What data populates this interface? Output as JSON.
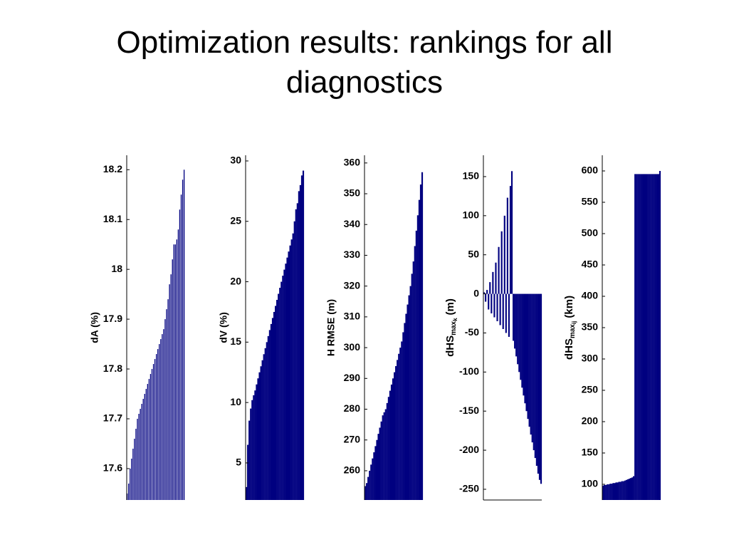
{
  "title": "Optimization results: rankings for all diagnostics",
  "chart_data": [
    {
      "type": "bar",
      "ylabel": "dA (%)",
      "color": "#000080",
      "values": [
        17.55,
        17.57,
        17.6,
        17.62,
        17.64,
        17.66,
        17.68,
        17.7,
        17.71,
        17.72,
        17.73,
        17.74,
        17.75,
        17.76,
        17.77,
        17.78,
        17.79,
        17.8,
        17.81,
        17.82,
        17.83,
        17.84,
        17.85,
        17.86,
        17.87,
        17.88,
        17.9,
        17.92,
        17.94,
        17.97,
        17.99,
        18.02,
        18.05,
        18.05,
        18.06,
        18.08,
        18.12,
        18.15,
        18.18,
        18.2
      ],
      "ylim": [
        17.537,
        18.229
      ],
      "yticks": [
        17.6,
        17.7,
        17.8,
        17.9,
        18,
        18.1,
        18.2
      ]
    },
    {
      "type": "bar",
      "ylabel": "dV (%)",
      "color": "#000080",
      "values": [
        3,
        6.5,
        8.5,
        9.5,
        10.2,
        10.6,
        11,
        11.5,
        12,
        12.5,
        13,
        13.5,
        14,
        14.5,
        15,
        15.5,
        16,
        16.5,
        17,
        17.5,
        18,
        18.5,
        19,
        19.5,
        20,
        20.5,
        21,
        21.5,
        22,
        22.5,
        23,
        23.5,
        24,
        25,
        26,
        26.5,
        27.5,
        28,
        28.8,
        29.2
      ],
      "ylim": [
        1.93,
        30.47
      ],
      "yticks": [
        5,
        10,
        15,
        20,
        25,
        30
      ]
    },
    {
      "type": "bar",
      "ylabel": "H RMSE (m)",
      "color": "#000080",
      "values": [
        255,
        256,
        258,
        260,
        262,
        264,
        266,
        268,
        270,
        272,
        274,
        276,
        278,
        279,
        280,
        282,
        284,
        286,
        288,
        290,
        292,
        294,
        296,
        298,
        300,
        302,
        305,
        308,
        311,
        314,
        317,
        320,
        324,
        328,
        333,
        338,
        343,
        348,
        353,
        357
      ],
      "ylim": [
        250.5,
        362.5
      ],
      "yticks": [
        260,
        270,
        280,
        290,
        300,
        310,
        320,
        330,
        340,
        350,
        360
      ]
    },
    {
      "type": "bar",
      "ylabel": [
        "dHS",
        "max",
        "k",
        "(m)"
      ],
      "color": "#000080",
      "values": [
        2,
        -10,
        5,
        -20,
        15,
        -25,
        28,
        -30,
        40,
        -35,
        60,
        -40,
        80,
        -45,
        100,
        -50,
        123,
        -55,
        138,
        157,
        -60,
        -70,
        -80,
        -90,
        -100,
        -110,
        -120,
        -130,
        -140,
        -150,
        -160,
        -170,
        -180,
        -190,
        -200,
        -210,
        -220,
        -230,
        -238,
        -243
      ],
      "ylim": [
        -263.7,
        177.3
      ],
      "yticks": [
        -250,
        -200,
        -150,
        -100,
        -50,
        0,
        50,
        100,
        150
      ]
    },
    {
      "type": "bar",
      "ylabel": [
        "dHS",
        "max",
        "ij",
        "(km)"
      ],
      "color": "#000080",
      "values": [
        98,
        99,
        99,
        100,
        100,
        101,
        101,
        102,
        102,
        103,
        103,
        104,
        104,
        105,
        105,
        106,
        107,
        108,
        109,
        110,
        111,
        113,
        595,
        595,
        595,
        595,
        595,
        595,
        595,
        595,
        595,
        595,
        595,
        595,
        595,
        595,
        595,
        595,
        595,
        600
      ],
      "ylim": [
        75,
        625
      ],
      "yticks": [
        100,
        150,
        200,
        250,
        300,
        350,
        400,
        450,
        500,
        550,
        600
      ]
    }
  ]
}
